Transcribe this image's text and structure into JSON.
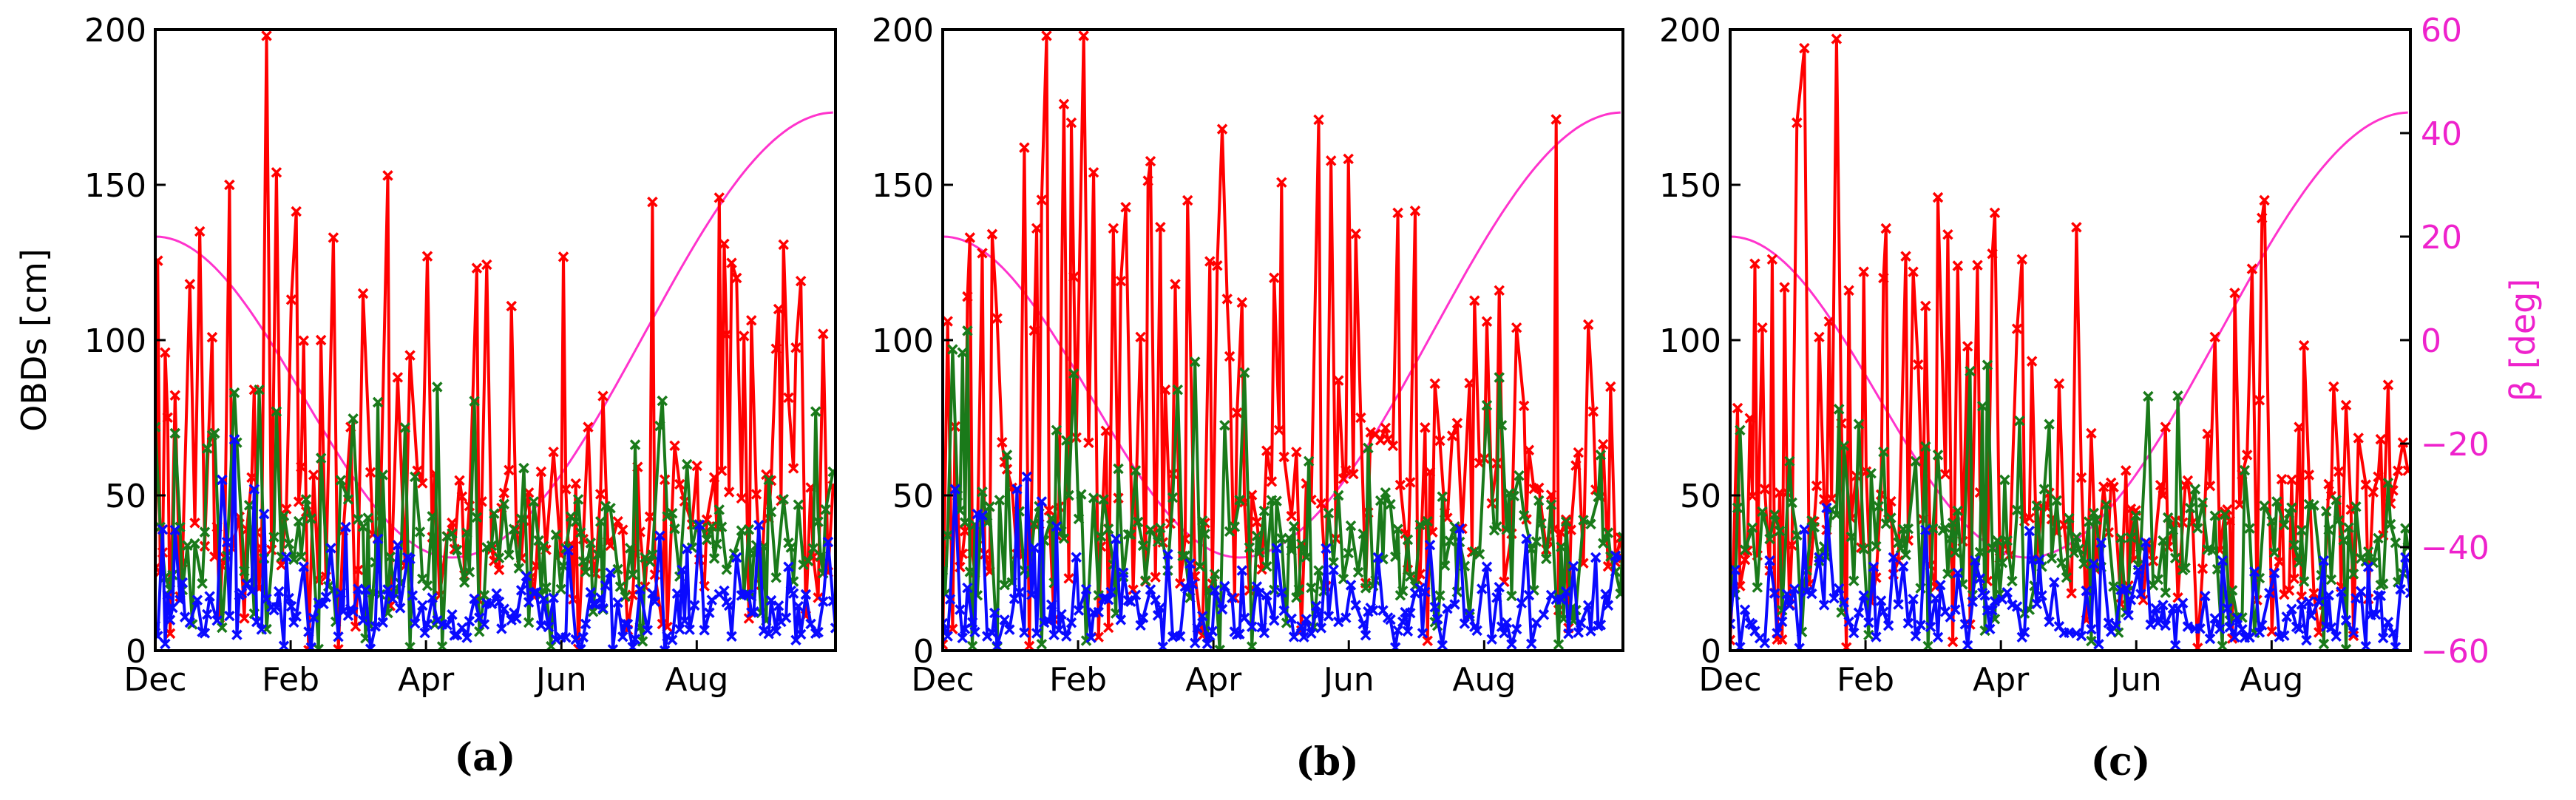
{
  "colors": {
    "red": "#ff0000",
    "green": "#1a7a1a",
    "blue": "#0a0aff",
    "magenta": "#ff33cc",
    "beta_axis": "#ee22cc"
  },
  "labels": {
    "ylabel_left": "OBDs [cm]",
    "ylabel_right": "β [deg]"
  },
  "chart_data": [
    {
      "type": "line",
      "panel_label": "(a)",
      "xticks": [
        "Dec",
        "Feb",
        "Apr",
        "Jun",
        "Aug"
      ],
      "xrange_days": [
        0,
        275
      ],
      "ylim": [
        0,
        200
      ],
      "yticks": [
        0,
        50,
        100,
        150,
        200
      ],
      "ylabel": "OBDs [cm]",
      "beta": {
        "ylim": [
          -60,
          60
        ],
        "start": 20,
        "end": 44,
        "min": -42,
        "min_day": 120
      },
      "series": [
        {
          "color": "red",
          "seed": 11,
          "mean": 38,
          "spread": 22,
          "peak_prob": 0.22,
          "peak_max": 160,
          "spikes": [
            [
              4,
              96
            ],
            [
              14,
              118
            ],
            [
              18,
              135
            ],
            [
              30,
              150
            ],
            [
              40,
              84
            ],
            [
              46,
              198
            ],
            [
              50,
              154
            ],
            [
              55,
              113
            ],
            [
              67,
              100
            ],
            [
              71,
              133
            ],
            [
              80,
              72
            ],
            [
              84,
              115
            ],
            [
              94,
              153
            ],
            [
              98,
              88
            ],
            [
              110,
              127
            ],
            [
              132,
              48
            ],
            [
              160,
              64
            ],
            [
              166,
              52
            ],
            [
              176,
              72
            ],
            [
              182,
              82
            ],
            [
              210,
              66
            ],
            [
              230,
              131
            ],
            [
              235,
              120
            ],
            [
              252,
              110
            ],
            [
              261,
              119
            ],
            [
              270,
              102
            ]
          ]
        },
        {
          "color": "green",
          "seed": 23,
          "mean": 33,
          "spread": 16,
          "peak_prob": 0.1,
          "peak_max": 85,
          "spikes": [
            [
              1,
              72
            ],
            [
              9,
              70
            ],
            [
              25,
              70
            ],
            [
              33,
              67
            ],
            [
              42,
              84
            ],
            [
              50,
              77
            ],
            [
              68,
              62
            ],
            [
              90,
              80
            ],
            [
              105,
              56
            ],
            [
              154,
              48
            ],
            [
              172,
              38
            ],
            [
              214,
              60
            ],
            [
              225,
              40
            ],
            [
              248,
              55
            ],
            [
              267,
              77
            ]
          ]
        },
        {
          "color": "blue",
          "seed": 37,
          "mean": 12,
          "spread": 8,
          "peak_prob": 0.08,
          "peak_max": 45,
          "spikes": [
            [
              3,
              39
            ],
            [
              28,
              55
            ],
            [
              32,
              68
            ],
            [
              40,
              52
            ],
            [
              44,
              44
            ],
            [
              60,
              27
            ],
            [
              72,
              33
            ],
            [
              90,
              36
            ],
            [
              102,
              30
            ],
            [
              150,
              24
            ],
            [
              182,
              21
            ],
            [
              205,
              37
            ],
            [
              213,
              26
            ],
            [
              236,
              30
            ],
            [
              256,
              27
            ],
            [
              272,
              35
            ]
          ]
        }
      ]
    },
    {
      "type": "line",
      "panel_label": "(b)",
      "xticks": [
        "Dec",
        "Feb",
        "Apr",
        "Jun",
        "Aug"
      ],
      "xrange_days": [
        0,
        275
      ],
      "ylim": [
        0,
        200
      ],
      "yticks": [
        0,
        50,
        100,
        150,
        200
      ],
      "ylabel": "",
      "beta": {
        "ylim": [
          -60,
          60
        ],
        "start": 20,
        "end": 44,
        "min": -42,
        "min_day": 120
      },
      "series": [
        {
          "color": "red",
          "seed": 53,
          "mean": 45,
          "spread": 26,
          "peak_prob": 0.24,
          "peak_max": 175,
          "spikes": [
            [
              11,
              133
            ],
            [
              16,
              128
            ],
            [
              22,
              107
            ],
            [
              33,
              162
            ],
            [
              38,
              136
            ],
            [
              42,
              198
            ],
            [
              50,
              176
            ],
            [
              52,
              170
            ],
            [
              56,
              193
            ],
            [
              58,
              198
            ],
            [
              62,
              154
            ],
            [
              70,
              136
            ],
            [
              72,
              119
            ],
            [
              80,
              101
            ],
            [
              90,
              84
            ],
            [
              94,
              118
            ],
            [
              100,
              145
            ],
            [
              112,
              124
            ],
            [
              160,
              87
            ],
            [
              170,
              75
            ],
            [
              180,
              68
            ],
            [
              200,
              86
            ],
            [
              220,
              106
            ],
            [
              226,
              116
            ],
            [
              232,
              104
            ],
            [
              262,
              105
            ],
            [
              270,
              85
            ]
          ]
        },
        {
          "color": "green",
          "seed": 67,
          "mean": 34,
          "spread": 17,
          "peak_prob": 0.1,
          "peak_max": 90,
          "spikes": [
            [
              4,
              97
            ],
            [
              8,
              96
            ],
            [
              10,
              103
            ],
            [
              26,
              63
            ],
            [
              46,
              71
            ],
            [
              52,
              50
            ],
            [
              78,
              58
            ],
            [
              96,
              84
            ],
            [
              102,
              93
            ],
            [
              130,
              45
            ],
            [
              142,
              40
            ],
            [
              148,
              61
            ],
            [
              160,
              50
            ],
            [
              210,
              35
            ],
            [
              246,
              47
            ],
            [
              266,
              63
            ]
          ]
        },
        {
          "color": "blue",
          "seed": 79,
          "mean": 13,
          "spread": 9,
          "peak_prob": 0.08,
          "peak_max": 50,
          "spikes": [
            [
              6,
              52
            ],
            [
              14,
              44
            ],
            [
              30,
              52
            ],
            [
              34,
              56
            ],
            [
              40,
              48
            ],
            [
              46,
              40
            ],
            [
              70,
              36
            ],
            [
              92,
              31
            ],
            [
              100,
              28
            ],
            [
              136,
              33
            ],
            [
              158,
              26
            ],
            [
              176,
              30
            ],
            [
              198,
              34
            ],
            [
              220,
              27
            ],
            [
              236,
              36
            ],
            [
              264,
              30
            ],
            [
              274,
              30
            ]
          ]
        }
      ]
    },
    {
      "type": "line",
      "panel_label": "(c)",
      "xticks": [
        "Dec",
        "Feb",
        "Apr",
        "Jun",
        "Aug"
      ],
      "xrange_days": [
        0,
        275
      ],
      "ylim": [
        0,
        200
      ],
      "yticks": [
        0,
        50,
        100,
        150,
        200
      ],
      "ylabel": "",
      "ylabel_right": "β [deg]",
      "yticks_right": [
        -60,
        -40,
        -20,
        0,
        20,
        40,
        60
      ],
      "beta": {
        "ylim": [
          -60,
          60
        ],
        "start": 20,
        "end": 44,
        "min": -42,
        "min_day": 120
      },
      "series": [
        {
          "color": "red",
          "seed": 97,
          "mean": 36,
          "spread": 22,
          "peak_prob": 0.2,
          "peak_max": 150,
          "spikes": [
            [
              13,
              104
            ],
            [
              17,
              126
            ],
            [
              22,
              117
            ],
            [
              28,
              170
            ],
            [
              31,
              194
            ],
            [
              36,
              101
            ],
            [
              40,
              106
            ],
            [
              44,
              197
            ],
            [
              48,
              116
            ],
            [
              54,
              122
            ],
            [
              62,
              120
            ],
            [
              70,
              127
            ],
            [
              74,
              122
            ],
            [
              80,
              111
            ],
            [
              88,
              134
            ],
            [
              96,
              98
            ],
            [
              108,
              141
            ],
            [
              118,
              126
            ],
            [
              134,
              86
            ],
            [
              146,
              70
            ],
            [
              160,
              58
            ],
            [
              176,
              72
            ],
            [
              196,
              101
            ],
            [
              210,
              63
            ],
            [
              230,
              72
            ],
            [
              244,
              85
            ],
            [
              262,
              56
            ],
            [
              272,
              67
            ]
          ]
        },
        {
          "color": "green",
          "seed": 103,
          "mean": 33,
          "spread": 16,
          "peak_prob": 0.1,
          "peak_max": 85,
          "spikes": [
            [
              4,
              71
            ],
            [
              24,
              61
            ],
            [
              46,
              66
            ],
            [
              62,
              64
            ],
            [
              76,
              61
            ],
            [
              84,
              63
            ],
            [
              96,
              90
            ],
            [
              104,
              92
            ],
            [
              118,
              74
            ],
            [
              128,
              52
            ],
            [
              152,
              47
            ],
            [
              188,
              52
            ],
            [
              222,
              48
            ],
            [
              246,
              42
            ],
            [
              266,
              54
            ]
          ]
        },
        {
          "color": "blue",
          "seed": 131,
          "mean": 12,
          "spread": 8,
          "peak_prob": 0.08,
          "peak_max": 40,
          "spikes": [
            [
              2,
              26
            ],
            [
              16,
              29
            ],
            [
              30,
              39
            ],
            [
              36,
              30
            ],
            [
              40,
              46
            ],
            [
              58,
              27
            ],
            [
              66,
              30
            ],
            [
              92,
              25
            ],
            [
              100,
              29
            ],
            [
              132,
              22
            ],
            [
              148,
              28
            ],
            [
              164,
              26
            ],
            [
              200,
              29
            ],
            [
              220,
              25
            ],
            [
              240,
              29
            ],
            [
              258,
              27
            ],
            [
              274,
              30
            ]
          ]
        }
      ]
    }
  ]
}
